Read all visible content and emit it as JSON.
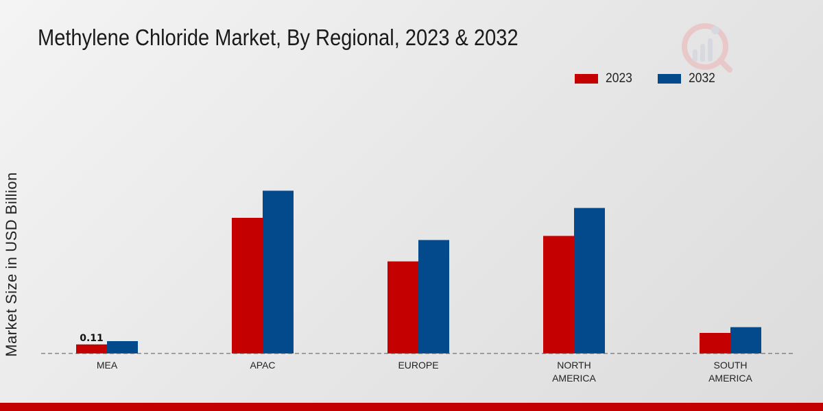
{
  "title": "Methylene Chloride Market, By Regional, 2023 & 2032",
  "legend": [
    {
      "label": "2023",
      "color": "#c40000"
    },
    {
      "label": "2032",
      "color": "#024a8c"
    }
  ],
  "chart_data": {
    "type": "bar",
    "title": "Methylene Chloride Market, By Regional, 2023 & 2032",
    "xlabel": "",
    "ylabel": "Market Size in USD Billion",
    "categories": [
      [
        "MEA"
      ],
      [
        "APAC"
      ],
      [
        "EUROPE"
      ],
      [
        "NORTH",
        "AMERICA"
      ],
      [
        "SOUTH",
        "AMERICA"
      ]
    ],
    "series": [
      {
        "name": "2023",
        "color": "#c40000",
        "values": [
          0.11,
          1.65,
          1.12,
          1.43,
          0.25
        ]
      },
      {
        "name": "2032",
        "color": "#024a8c",
        "values": [
          0.15,
          1.98,
          1.38,
          1.77,
          0.32
        ]
      }
    ],
    "data_labels": [
      {
        "series": 0,
        "index": 0,
        "text": "0.11"
      }
    ],
    "ylim": [
      0,
      3.0
    ],
    "legend_position": "top-right",
    "grid": false
  }
}
